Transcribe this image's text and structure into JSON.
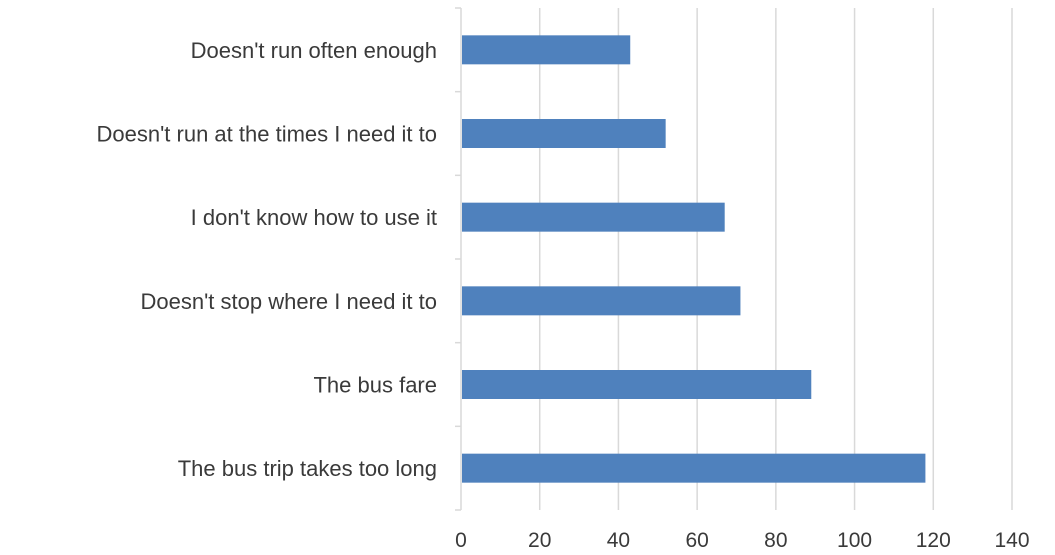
{
  "chart_data": {
    "type": "bar",
    "orientation": "horizontal",
    "title": "",
    "xlabel": "",
    "ylabel": "",
    "categories": [
      "Doesn't run often enough",
      "Doesn't run at the times I need it to",
      "I don't know how to use it",
      "Doesn't stop where I need it to",
      "The bus fare",
      "The bus trip takes too long"
    ],
    "values": [
      43,
      52,
      67,
      71,
      89,
      118
    ],
    "xlim": [
      0,
      140
    ],
    "xticks": [
      "0",
      "20",
      "40",
      "60",
      "80",
      "100",
      "120",
      "140"
    ],
    "grid": true,
    "legend": "none",
    "bar_color": "#4f81bd"
  }
}
